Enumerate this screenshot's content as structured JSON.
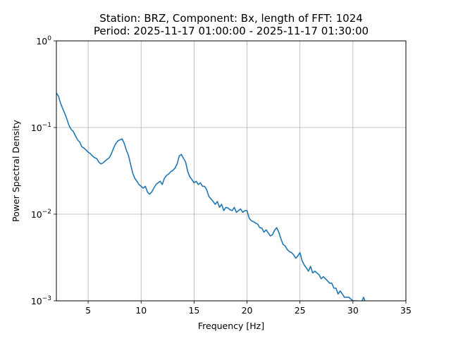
{
  "chart_data": {
    "type": "line",
    "title_line1": "Station: BRZ, Component: Bx, length of FFT: 1024",
    "title_line2": "Period: 2025-11-17 01:00:00 - 2025-11-17 01:30:00",
    "xlabel": "Frequency [Hz]",
    "ylabel": "Power Spectral Density",
    "xlim": [
      2,
      35
    ],
    "ylim": [
      0.001,
      1
    ],
    "yscale": "log",
    "grid": true,
    "x_ticks": [
      5,
      10,
      15,
      20,
      25,
      30,
      35
    ],
    "x_tick_labels": [
      "5",
      "10",
      "15",
      "20",
      "25",
      "30",
      "35"
    ],
    "y_ticks": [
      {
        "value": 0.001,
        "base": "10",
        "exp": "−3"
      },
      {
        "value": 0.01,
        "base": "10",
        "exp": "−2"
      },
      {
        "value": 0.1,
        "base": "10",
        "exp": "−1"
      },
      {
        "value": 1,
        "base": "10",
        "exp": "0"
      }
    ],
    "series": [
      {
        "color": "#1f77b4",
        "x": [
          2.0,
          2.2,
          2.4,
          2.6,
          2.8,
          3.0,
          3.2,
          3.4,
          3.6,
          3.8,
          4.0,
          4.2,
          4.4,
          4.6,
          4.8,
          5.0,
          5.2,
          5.4,
          5.6,
          5.8,
          6.0,
          6.2,
          6.4,
          6.6,
          6.8,
          7.0,
          7.2,
          7.4,
          7.6,
          7.8,
          8.0,
          8.2,
          8.4,
          8.6,
          8.8,
          9.0,
          9.2,
          9.4,
          9.6,
          9.8,
          10.0,
          10.2,
          10.4,
          10.6,
          10.8,
          11.0,
          11.2,
          11.4,
          11.6,
          11.8,
          12.0,
          12.2,
          12.4,
          12.6,
          12.8,
          13.0,
          13.2,
          13.4,
          13.6,
          13.8,
          14.0,
          14.2,
          14.4,
          14.6,
          14.8,
          15.0,
          15.2,
          15.4,
          15.6,
          15.8,
          16.0,
          16.2,
          16.4,
          16.6,
          16.8,
          17.0,
          17.2,
          17.4,
          17.6,
          17.8,
          18.0,
          18.2,
          18.4,
          18.6,
          18.8,
          19.0,
          19.2,
          19.4,
          19.6,
          19.8,
          20.0,
          20.2,
          20.4,
          20.6,
          20.8,
          21.0,
          21.2,
          21.4,
          21.6,
          21.8,
          22.0,
          22.2,
          22.4,
          22.6,
          22.8,
          23.0,
          23.2,
          23.4,
          23.6,
          23.8,
          24.0,
          24.2,
          24.4,
          24.6,
          24.8,
          25.0,
          25.2,
          25.4,
          25.6,
          25.8,
          26.0,
          26.2,
          26.4,
          26.6,
          26.8,
          27.0,
          27.2,
          27.4,
          27.6,
          27.8,
          28.0,
          28.2,
          28.4,
          28.6,
          28.8,
          29.0,
          29.2,
          29.4,
          29.6,
          29.8,
          30.0,
          30.2,
          30.4,
          30.6,
          30.8,
          31.0,
          31.2
        ],
        "y": [
          0.25,
          0.23,
          0.19,
          0.165,
          0.145,
          0.125,
          0.105,
          0.095,
          0.09,
          0.08,
          0.072,
          0.068,
          0.06,
          0.058,
          0.055,
          0.052,
          0.05,
          0.047,
          0.045,
          0.044,
          0.04,
          0.038,
          0.039,
          0.041,
          0.043,
          0.045,
          0.05,
          0.058,
          0.065,
          0.07,
          0.072,
          0.074,
          0.066,
          0.055,
          0.048,
          0.038,
          0.03,
          0.026,
          0.024,
          0.022,
          0.021,
          0.02,
          0.021,
          0.018,
          0.017,
          0.018,
          0.02,
          0.022,
          0.023,
          0.024,
          0.022,
          0.026,
          0.028,
          0.029,
          0.031,
          0.032,
          0.034,
          0.038,
          0.047,
          0.049,
          0.044,
          0.04,
          0.031,
          0.027,
          0.025,
          0.023,
          0.024,
          0.022,
          0.023,
          0.021,
          0.021,
          0.019,
          0.016,
          0.015,
          0.014,
          0.013,
          0.014,
          0.012,
          0.013,
          0.011,
          0.012,
          0.0118,
          0.0112,
          0.011,
          0.012,
          0.0105,
          0.011,
          0.0115,
          0.0105,
          0.011,
          0.011,
          0.009,
          0.0084,
          0.0082,
          0.0079,
          0.0077,
          0.007,
          0.0069,
          0.0062,
          0.0066,
          0.0061,
          0.0056,
          0.0058,
          0.0065,
          0.007,
          0.0062,
          0.0052,
          0.0045,
          0.0043,
          0.0039,
          0.0037,
          0.0036,
          0.0034,
          0.0031,
          0.0033,
          0.0036,
          0.0029,
          0.0026,
          0.0024,
          0.0022,
          0.0025,
          0.0021,
          0.0022,
          0.0021,
          0.002,
          0.0018,
          0.0019,
          0.0018,
          0.0017,
          0.0016,
          0.0016,
          0.0014,
          0.0014,
          0.0012,
          0.0013,
          0.0012,
          0.0011,
          0.0011,
          0.0011,
          0.00105,
          0.001,
          0.001,
          0.001,
          0.00098,
          0.00096,
          0.0011,
          0.00095
        ]
      }
    ]
  }
}
